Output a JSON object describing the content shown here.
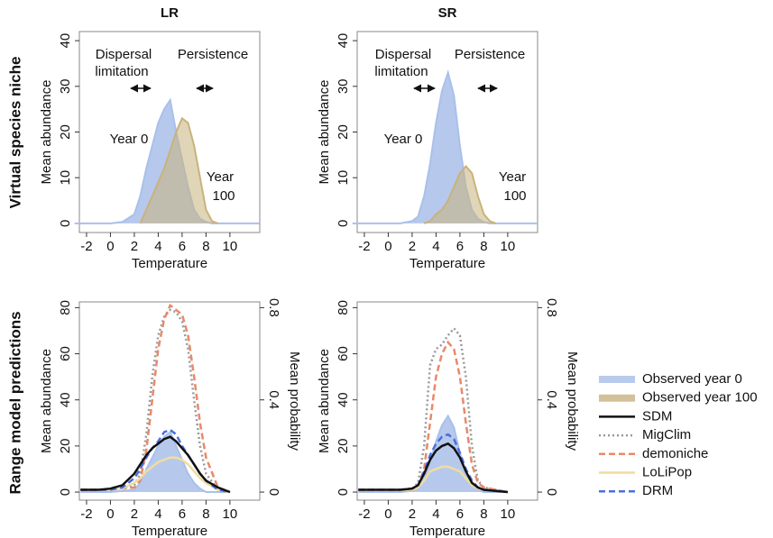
{
  "row_labels": [
    "Virtual species niche",
    "Range model predictions"
  ],
  "chart_data": [
    {
      "type": "area",
      "title": "LR",
      "xlabel": "Temperature",
      "ylabel": "Mean abundance",
      "annotations": [
        "Dispersal",
        "limitation",
        "Persistence",
        "Year 0",
        "Year",
        "100"
      ],
      "x": [
        -3,
        0,
        1,
        2,
        2.5,
        3,
        3.5,
        4,
        4.5,
        5,
        5.5,
        6,
        6.5,
        7,
        7.5,
        8,
        8.5,
        9,
        10,
        12.5
      ],
      "xlim": [
        -2.6,
        12.5
      ],
      "xticks": [
        -2,
        0,
        2,
        4,
        6,
        8,
        10
      ],
      "ylim": [
        -2,
        42
      ],
      "yticks": [
        0,
        10,
        20,
        30,
        40
      ],
      "series": [
        {
          "color": "#a9c0ea",
          "style": "area",
          "values": [
            0,
            0,
            0.3,
            2,
            6,
            12,
            17,
            22,
            25,
            27,
            20,
            14,
            8,
            3,
            1,
            0.3,
            0,
            0,
            0,
            0
          ]
        },
        {
          "color": "#c9b27c",
          "style": "area",
          "values": [
            null,
            null,
            null,
            null,
            0,
            3,
            6,
            9,
            12,
            16,
            20,
            23,
            22,
            17,
            10,
            3,
            0.5,
            0,
            null,
            null
          ]
        }
      ]
    },
    {
      "type": "area",
      "title": "SR",
      "xlabel": "Temperature",
      "ylabel": "Mean abundance",
      "annotations": [
        "Dispersal",
        "limitation",
        "Persistence",
        "Year 0",
        "Year",
        "100"
      ],
      "x": [
        -3,
        0,
        1,
        2,
        2.5,
        3,
        3.5,
        4,
        4.5,
        5,
        5.5,
        6,
        6.5,
        7,
        7.5,
        8,
        8.5,
        9,
        10,
        12.5
      ],
      "xlim": [
        -2.6,
        12.5
      ],
      "xticks": [
        -2,
        0,
        2,
        4,
        6,
        8,
        10
      ],
      "ylim": [
        -2,
        42
      ],
      "yticks": [
        0,
        10,
        20,
        30,
        40
      ],
      "series": [
        {
          "color": "#a9c0ea",
          "style": "area",
          "values": [
            0,
            0,
            0,
            0.5,
            1.5,
            6,
            13,
            22,
            29,
            33,
            28,
            17,
            8,
            3,
            1,
            0.3,
            0,
            0,
            0,
            0
          ]
        },
        {
          "color": "#c9b27c",
          "style": "area",
          "values": [
            null,
            null,
            null,
            null,
            null,
            0,
            0.5,
            2,
            3,
            5,
            8,
            11,
            12.5,
            11,
            6,
            2,
            0.5,
            0,
            null,
            null
          ]
        }
      ]
    },
    {
      "type": "line",
      "xlabel": "Temperature",
      "ylabel": "Mean abundance",
      "y2label": "Mean probability",
      "x": [
        -2.5,
        -1,
        0,
        1,
        2,
        2.5,
        3,
        3.5,
        4,
        4.5,
        5,
        5.5,
        6,
        6.5,
        7,
        7.5,
        8,
        9,
        10
      ],
      "xlim": [
        -2.6,
        12.5
      ],
      "xticks": [
        -2,
        0,
        2,
        4,
        6,
        8,
        10
      ],
      "ylim": [
        -3.5,
        82.5
      ],
      "yticks": [
        0,
        20,
        40,
        60,
        80
      ],
      "y2lim": [
        -0.035,
        0.825
      ],
      "y2ticks": [
        0,
        0.4,
        0.8
      ],
      "series": [
        {
          "color": "#a9c0ea",
          "style": "area",
          "values": [
            0,
            0,
            0,
            0.5,
            1,
            4,
            10,
            15,
            20,
            24,
            26,
            20,
            14,
            8,
            4,
            1.5,
            0,
            0,
            0
          ]
        },
        {
          "color": "#999999",
          "style": "dotted",
          "values": [
            1,
            1,
            1,
            1.5,
            3,
            8,
            25,
            50,
            68,
            76,
            79,
            78,
            74,
            62,
            40,
            20,
            8,
            1,
            0
          ]
        },
        {
          "color": "#e8896a",
          "style": "dashed",
          "values": [
            1,
            1,
            1,
            1.5,
            2,
            5,
            18,
            40,
            62,
            75,
            81,
            79,
            77,
            68,
            50,
            30,
            15,
            2,
            0
          ]
        },
        {
          "color": "#f0dca0",
          "style": "solid",
          "values": [
            1,
            1,
            1,
            1.5,
            4,
            6,
            9,
            11,
            13,
            14,
            15,
            15,
            14,
            12,
            9,
            6,
            4,
            1,
            0
          ]
        },
        {
          "color": "#4a6ee0",
          "style": "dashed",
          "values": [
            1,
            1,
            1,
            2,
            6,
            10,
            15,
            19,
            22,
            26,
            27,
            25,
            20,
            16,
            12,
            8,
            5,
            1,
            0
          ]
        },
        {
          "color": "#111111",
          "style": "solid",
          "values": [
            1,
            1,
            1.5,
            3,
            8,
            12,
            16,
            19,
            21,
            23,
            24,
            22,
            19,
            16,
            12,
            8,
            5,
            2,
            0
          ]
        }
      ]
    },
    {
      "type": "line",
      "xlabel": "Temperature",
      "ylabel": "Mean abundance",
      "y2label": "Mean probability",
      "x": [
        -2.5,
        -1,
        0,
        1,
        2,
        2.5,
        3,
        3.5,
        4,
        4.5,
        5,
        5.5,
        6,
        6.5,
        7,
        7.5,
        8,
        9,
        10
      ],
      "xlim": [
        -2.6,
        12.5
      ],
      "xticks": [
        -2,
        0,
        2,
        4,
        6,
        8,
        10
      ],
      "ylim": [
        -3.5,
        82.5
      ],
      "yticks": [
        0,
        20,
        40,
        60,
        80
      ],
      "y2lim": [
        -0.035,
        0.825
      ],
      "y2ticks": [
        0,
        0.4,
        0.8
      ],
      "series": [
        {
          "color": "#a9c0ea",
          "style": "area",
          "values": [
            0,
            0,
            0,
            0,
            0.5,
            1.5,
            6,
            13,
            22,
            29,
            33,
            28,
            17,
            8,
            3,
            1,
            0,
            0,
            0
          ]
        },
        {
          "color": "#999999",
          "style": "dotted",
          "values": [
            1,
            1,
            1,
            1,
            1.5,
            4,
            20,
            55,
            62,
            64,
            68,
            71,
            68,
            50,
            20,
            5,
            2,
            1,
            0
          ]
        },
        {
          "color": "#e8896a",
          "style": "dashed",
          "values": [
            1,
            1,
            1,
            1,
            1,
            2,
            10,
            30,
            50,
            60,
            65,
            62,
            50,
            30,
            12,
            4,
            2,
            1,
            0
          ]
        },
        {
          "color": "#f0dca0",
          "style": "solid",
          "values": [
            1,
            1,
            1,
            1,
            1,
            2,
            5,
            9,
            10,
            11,
            11,
            10,
            9,
            6,
            3,
            1.5,
            1,
            0.5,
            0
          ]
        },
        {
          "color": "#4a6ee0",
          "style": "dashed",
          "values": [
            1,
            1,
            1,
            1,
            1.5,
            3,
            9,
            16,
            21,
            24,
            25,
            23,
            17,
            10,
            5,
            2,
            1,
            0.5,
            0
          ]
        },
        {
          "color": "#111111",
          "style": "solid",
          "values": [
            1,
            1,
            1,
            1,
            1.5,
            3,
            8,
            14,
            18,
            20,
            21,
            19,
            15,
            9,
            4,
            2,
            1,
            0.5,
            0
          ]
        }
      ],
      "legend": [
        {
          "name": "Observed year 0",
          "color": "#b8cbed",
          "style": "area"
        },
        {
          "name": "Observed year 100",
          "color": "#d3c19a",
          "style": "area"
        },
        {
          "name": "SDM",
          "color": "#111111",
          "style": "solid"
        },
        {
          "name": "MigClim",
          "color": "#999999",
          "style": "dotted"
        },
        {
          "name": "demoniche",
          "color": "#e8896a",
          "style": "dashed"
        },
        {
          "name": "LoLiPop",
          "color": "#f0dca0",
          "style": "solid"
        },
        {
          "name": "DRM",
          "color": "#4a6ee0",
          "style": "dashed"
        }
      ]
    }
  ]
}
